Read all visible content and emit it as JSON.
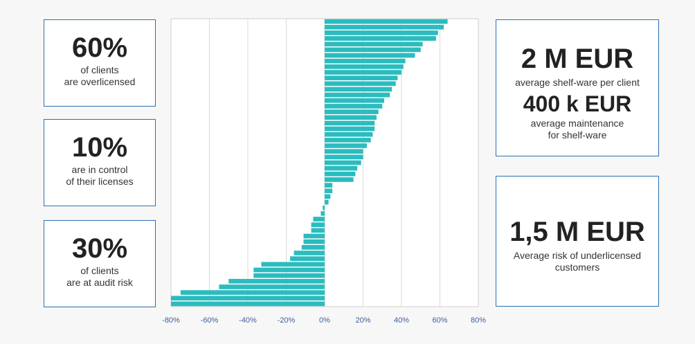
{
  "cards": {
    "left_top": {
      "big": "60%",
      "line1": "of clients",
      "line2": "are overlicensed"
    },
    "left_mid": {
      "big": "10%",
      "line1": "are in control",
      "line2": "of their licenses"
    },
    "left_bot": {
      "big": "30%",
      "line1": "of clients",
      "line2": "are at audit risk"
    },
    "right_top": {
      "big1": "2 M EUR",
      "sub1": "average shelf-ware  per client",
      "big2": "400 k EUR",
      "sub2a": "average maintenance",
      "sub2b": "for shelf-ware"
    },
    "right_bot": {
      "big": "1,5 M EUR",
      "line1": "Average risk of underlicensed",
      "line2": "customers"
    }
  },
  "colors": {
    "bar": "#2bbcbf",
    "border": "#2a6fb3",
    "tick": "#3e5f9a",
    "grid": "#d9d9d9"
  },
  "chart_data": {
    "type": "bar",
    "orientation": "horizontal",
    "title": "",
    "xlabel": "",
    "ylabel": "",
    "xlim": [
      -0.8,
      0.8
    ],
    "xticks": [
      "-80%",
      "-60%",
      "-40%",
      "-20%",
      "0%",
      "20%",
      "40%",
      "60%",
      "80%"
    ],
    "xtick_values": [
      -0.8,
      -0.6,
      -0.4,
      -0.2,
      0,
      0.2,
      0.4,
      0.6,
      0.8
    ],
    "grid": "vertical",
    "values": [
      0.64,
      0.62,
      0.59,
      0.58,
      0.51,
      0.5,
      0.47,
      0.42,
      0.41,
      0.4,
      0.38,
      0.37,
      0.35,
      0.34,
      0.31,
      0.3,
      0.28,
      0.27,
      0.26,
      0.26,
      0.25,
      0.24,
      0.22,
      0.2,
      0.2,
      0.19,
      0.17,
      0.16,
      0.15,
      0.04,
      0.04,
      0.03,
      0.02,
      -0.01,
      -0.02,
      -0.06,
      -0.07,
      -0.07,
      -0.11,
      -0.11,
      -0.12,
      -0.16,
      -0.18,
      -0.33,
      -0.37,
      -0.37,
      -0.5,
      -0.55,
      -0.75,
      -0.8,
      -0.8
    ]
  }
}
